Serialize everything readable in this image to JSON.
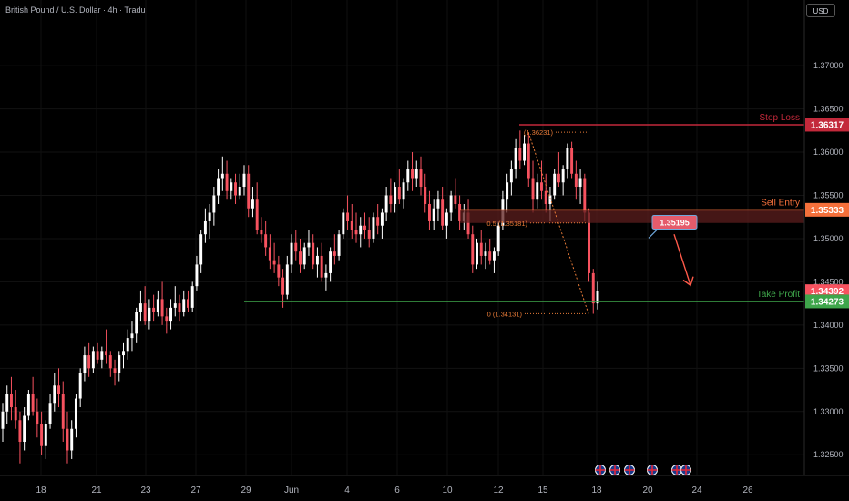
{
  "header": {
    "title": "British Pound / U.S. Dollar · 4h · Tradu",
    "currency_button": "USD"
  },
  "colors": {
    "up": "#ffffff",
    "down": "#f7525f",
    "stop": "#c3293b",
    "entry": "#f5703b",
    "target": "#3fa64b",
    "fib": "#e87b38"
  },
  "icons": [
    "event-flag-icon",
    "event-flag-icon",
    "event-flag-icon",
    "event-flag-icon",
    "event-flag-icon",
    "event-flag-icon"
  ],
  "chart_data": {
    "type": "candlestick",
    "title": "British Pound / U.S. Dollar · 4h · Tradu",
    "xlabel": "",
    "ylabel": "",
    "ylim": [
      1.3226,
      1.3776
    ],
    "y_ticks": [
      "1.37000",
      "1.36500",
      "1.36000",
      "1.35500",
      "1.35000",
      "1.34500",
      "1.34000",
      "1.33500",
      "1.33000",
      "1.32500"
    ],
    "x_ticks": [
      "18",
      "21",
      "23",
      "27",
      "29",
      "Jun",
      "4",
      "6",
      "10",
      "12",
      "15",
      "18",
      "20",
      "24",
      "26"
    ],
    "current_price": "1.34392",
    "levels": [
      {
        "label": "Stop Loss",
        "value": 1.36317,
        "display": "1.36317"
      },
      {
        "label": "Sell Entry",
        "value": 1.35333,
        "display": "1.35333"
      },
      {
        "label": "Take Profit",
        "value": 1.34273,
        "display": "1.34273"
      }
    ],
    "fib_labels": [
      {
        "text": "(1.36231)",
        "value": 1.36231
      },
      {
        "text": "0.5 (1.35181)",
        "value": 1.35181
      },
      {
        "text": "0 (1.34131)",
        "value": 1.34131
      }
    ],
    "callout": "1.35195",
    "candles": [
      [
        1.328,
        1.331,
        1.3265,
        1.33
      ],
      [
        1.33,
        1.333,
        1.3285,
        1.332
      ],
      [
        1.332,
        1.334,
        1.329,
        1.3305
      ],
      [
        1.3305,
        1.3325,
        1.328,
        1.329
      ],
      [
        1.329,
        1.33,
        1.324,
        1.3265
      ],
      [
        1.3265,
        1.3305,
        1.3255,
        1.3295
      ],
      [
        1.3295,
        1.3325,
        1.329,
        1.332
      ],
      [
        1.332,
        1.334,
        1.3295,
        1.33
      ],
      [
        1.33,
        1.3315,
        1.327,
        1.3285
      ],
      [
        1.3285,
        1.33,
        1.325,
        1.326
      ],
      [
        1.326,
        1.329,
        1.3245,
        1.3285
      ],
      [
        1.3285,
        1.332,
        1.328,
        1.331
      ],
      [
        1.331,
        1.3345,
        1.33,
        1.333
      ],
      [
        1.333,
        1.335,
        1.3305,
        1.332
      ],
      [
        1.332,
        1.3335,
        1.3265,
        1.328
      ],
      [
        1.328,
        1.33,
        1.324,
        1.3255
      ],
      [
        1.3255,
        1.329,
        1.3245,
        1.328
      ],
      [
        1.328,
        1.332,
        1.327,
        1.3315
      ],
      [
        1.3315,
        1.335,
        1.3305,
        1.3345
      ],
      [
        1.3345,
        1.3375,
        1.3335,
        1.3365
      ],
      [
        1.3365,
        1.338,
        1.334,
        1.335
      ],
      [
        1.335,
        1.3375,
        1.3345,
        1.337
      ],
      [
        1.337,
        1.338,
        1.3355,
        1.336
      ],
      [
        1.336,
        1.3375,
        1.335,
        1.337
      ],
      [
        1.337,
        1.3395,
        1.3355,
        1.3365
      ],
      [
        1.3365,
        1.337,
        1.334,
        1.335
      ],
      [
        1.335,
        1.336,
        1.333,
        1.3345
      ],
      [
        1.3345,
        1.337,
        1.3335,
        1.3365
      ],
      [
        1.3365,
        1.338,
        1.335,
        1.337
      ],
      [
        1.337,
        1.3395,
        1.336,
        1.3385
      ],
      [
        1.3385,
        1.3405,
        1.337,
        1.339
      ],
      [
        1.339,
        1.342,
        1.338,
        1.3415
      ],
      [
        1.3415,
        1.344,
        1.3405,
        1.3425
      ],
      [
        1.3425,
        1.3445,
        1.34,
        1.3405
      ],
      [
        1.3405,
        1.343,
        1.3395,
        1.342
      ],
      [
        1.342,
        1.3435,
        1.3405,
        1.3415
      ],
      [
        1.3415,
        1.344,
        1.341,
        1.343
      ],
      [
        1.343,
        1.345,
        1.34,
        1.341
      ],
      [
        1.341,
        1.342,
        1.339,
        1.3405
      ],
      [
        1.3405,
        1.343,
        1.3395,
        1.342
      ],
      [
        1.342,
        1.3445,
        1.341,
        1.3425
      ],
      [
        1.3425,
        1.3435,
        1.3405,
        1.3415
      ],
      [
        1.3415,
        1.344,
        1.341,
        1.343
      ],
      [
        1.343,
        1.344,
        1.3415,
        1.342
      ],
      [
        1.342,
        1.345,
        1.3415,
        1.3445
      ],
      [
        1.3445,
        1.348,
        1.344,
        1.347
      ],
      [
        1.347,
        1.351,
        1.346,
        1.3505
      ],
      [
        1.3505,
        1.3535,
        1.3495,
        1.352
      ],
      [
        1.352,
        1.354,
        1.35,
        1.353
      ],
      [
        1.353,
        1.356,
        1.3515,
        1.355
      ],
      [
        1.355,
        1.358,
        1.354,
        1.357
      ],
      [
        1.357,
        1.3595,
        1.3555,
        1.3575
      ],
      [
        1.3575,
        1.359,
        1.3545,
        1.3555
      ],
      [
        1.3555,
        1.357,
        1.3545,
        1.3565
      ],
      [
        1.3565,
        1.3575,
        1.354,
        1.355
      ],
      [
        1.355,
        1.3575,
        1.3545,
        1.356
      ],
      [
        1.356,
        1.3585,
        1.355,
        1.3575
      ],
      [
        1.3575,
        1.3585,
        1.3525,
        1.3535
      ],
      [
        1.3535,
        1.356,
        1.3525,
        1.3545
      ],
      [
        1.3545,
        1.3565,
        1.3505,
        1.351
      ],
      [
        1.351,
        1.3525,
        1.3495,
        1.3505
      ],
      [
        1.3505,
        1.352,
        1.348,
        1.349
      ],
      [
        1.349,
        1.3505,
        1.3465,
        1.3475
      ],
      [
        1.3475,
        1.3495,
        1.346,
        1.347
      ],
      [
        1.347,
        1.348,
        1.3445,
        1.3455
      ],
      [
        1.3455,
        1.3465,
        1.342,
        1.3435
      ],
      [
        1.3435,
        1.348,
        1.343,
        1.347
      ],
      [
        1.347,
        1.3505,
        1.346,
        1.3495
      ],
      [
        1.3495,
        1.351,
        1.3475,
        1.3485
      ],
      [
        1.3485,
        1.35,
        1.346,
        1.347
      ],
      [
        1.347,
        1.3495,
        1.3465,
        1.349
      ],
      [
        1.349,
        1.351,
        1.348,
        1.3495
      ],
      [
        1.3495,
        1.3505,
        1.3465,
        1.347
      ],
      [
        1.347,
        1.349,
        1.3455,
        1.348
      ],
      [
        1.348,
        1.3495,
        1.345,
        1.3455
      ],
      [
        1.3455,
        1.347,
        1.344,
        1.346
      ],
      [
        1.346,
        1.349,
        1.345,
        1.3485
      ],
      [
        1.3485,
        1.3505,
        1.347,
        1.348
      ],
      [
        1.348,
        1.351,
        1.3475,
        1.3505
      ],
      [
        1.3505,
        1.3535,
        1.35,
        1.353
      ],
      [
        1.353,
        1.355,
        1.351,
        1.352
      ],
      [
        1.352,
        1.354,
        1.35,
        1.351
      ],
      [
        1.351,
        1.353,
        1.3495,
        1.3505
      ],
      [
        1.3505,
        1.3525,
        1.349,
        1.3515
      ],
      [
        1.3515,
        1.353,
        1.35,
        1.351
      ],
      [
        1.351,
        1.3525,
        1.349,
        1.35
      ],
      [
        1.35,
        1.353,
        1.3495,
        1.3525
      ],
      [
        1.3525,
        1.354,
        1.3505,
        1.3515
      ],
      [
        1.3515,
        1.3535,
        1.35,
        1.353
      ],
      [
        1.353,
        1.356,
        1.352,
        1.355
      ],
      [
        1.355,
        1.357,
        1.353,
        1.354
      ],
      [
        1.354,
        1.3565,
        1.353,
        1.356
      ],
      [
        1.356,
        1.358,
        1.354,
        1.3545
      ],
      [
        1.3545,
        1.357,
        1.3535,
        1.3565
      ],
      [
        1.3565,
        1.359,
        1.3555,
        1.358
      ],
      [
        1.358,
        1.36,
        1.3555,
        1.357
      ],
      [
        1.357,
        1.359,
        1.356,
        1.358
      ],
      [
        1.358,
        1.3595,
        1.355,
        1.356
      ],
      [
        1.356,
        1.3575,
        1.353,
        1.354
      ],
      [
        1.354,
        1.3555,
        1.351,
        1.352
      ],
      [
        1.352,
        1.3545,
        1.351,
        1.3535
      ],
      [
        1.3535,
        1.3555,
        1.352,
        1.3545
      ],
      [
        1.3545,
        1.356,
        1.351,
        1.3515
      ],
      [
        1.3515,
        1.3535,
        1.35,
        1.353
      ],
      [
        1.353,
        1.3555,
        1.352,
        1.355
      ],
      [
        1.355,
        1.357,
        1.3535,
        1.354
      ],
      [
        1.354,
        1.355,
        1.351,
        1.352
      ],
      [
        1.352,
        1.354,
        1.351,
        1.353
      ],
      [
        1.353,
        1.3545,
        1.35,
        1.3505
      ],
      [
        1.3505,
        1.3515,
        1.346,
        1.347
      ],
      [
        1.347,
        1.35,
        1.3465,
        1.3495
      ],
      [
        1.3495,
        1.351,
        1.347,
        1.348
      ],
      [
        1.348,
        1.3495,
        1.3465,
        1.3485
      ],
      [
        1.3485,
        1.35,
        1.347,
        1.3475
      ],
      [
        1.3475,
        1.349,
        1.346,
        1.3485
      ],
      [
        1.3485,
        1.352,
        1.348,
        1.3515
      ],
      [
        1.3515,
        1.3555,
        1.351,
        1.3545
      ],
      [
        1.3545,
        1.3575,
        1.353,
        1.3565
      ],
      [
        1.3565,
        1.359,
        1.355,
        1.358
      ],
      [
        1.358,
        1.3615,
        1.357,
        1.3605
      ],
      [
        1.3605,
        1.3625,
        1.358,
        1.359
      ],
      [
        1.359,
        1.362,
        1.3585,
        1.361
      ],
      [
        1.361,
        1.3623,
        1.356,
        1.357
      ],
      [
        1.357,
        1.359,
        1.353,
        1.3545
      ],
      [
        1.3545,
        1.3575,
        1.3535,
        1.3565
      ],
      [
        1.3565,
        1.359,
        1.3545,
        1.3555
      ],
      [
        1.3555,
        1.3575,
        1.353,
        1.354
      ],
      [
        1.354,
        1.356,
        1.352,
        1.355
      ],
      [
        1.355,
        1.358,
        1.3545,
        1.3575
      ],
      [
        1.3575,
        1.36,
        1.356,
        1.3565
      ],
      [
        1.3565,
        1.3585,
        1.355,
        1.358
      ],
      [
        1.358,
        1.361,
        1.357,
        1.3605
      ],
      [
        1.3605,
        1.3612,
        1.357,
        1.3575
      ],
      [
        1.3575,
        1.359,
        1.3545,
        1.356
      ],
      [
        1.356,
        1.358,
        1.354,
        1.357
      ],
      [
        1.357,
        1.3575,
        1.352,
        1.353
      ],
      [
        1.353,
        1.3535,
        1.345,
        1.346
      ],
      [
        1.346,
        1.3465,
        1.3413,
        1.3425
      ],
      [
        1.3425,
        1.345,
        1.3418,
        1.3439
      ]
    ]
  }
}
